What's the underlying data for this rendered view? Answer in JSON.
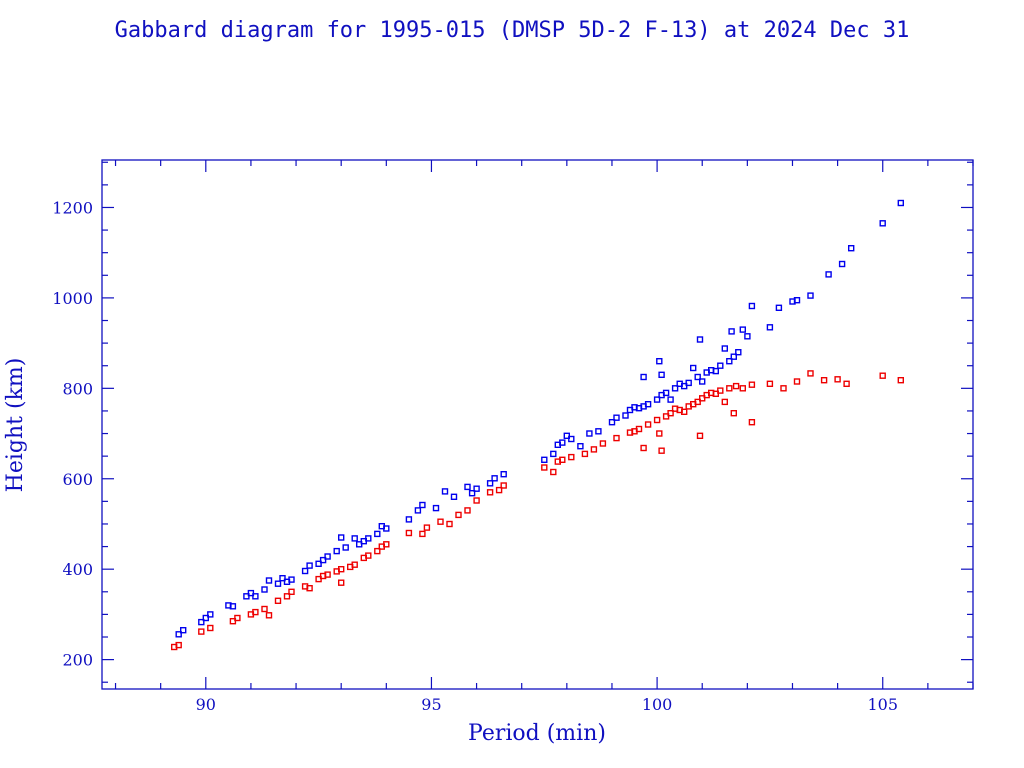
{
  "chart_data": {
    "type": "scatter",
    "title": "Gabbard diagram for 1995-015 (DMSP 5D-2 F-13) at 2024 Dec 31",
    "xlabel": "Period (min)",
    "ylabel": "Height (km)",
    "xlim": [
      87.7,
      107
    ],
    "ylim": [
      135,
      1305
    ],
    "xticks": [
      90,
      95,
      100,
      105
    ],
    "yticks": [
      200,
      400,
      600,
      800,
      1000,
      1200
    ],
    "x_minor_step": 1,
    "y_minor_step": 50,
    "grid": false,
    "legend": "none",
    "series": [
      {
        "color": "#0000ee",
        "marker": "square",
        "points": [
          [
            89.4,
            256
          ],
          [
            89.5,
            265
          ],
          [
            89.9,
            283
          ],
          [
            90.0,
            292
          ],
          [
            90.1,
            300
          ],
          [
            90.5,
            320
          ],
          [
            90.6,
            318
          ],
          [
            90.9,
            340
          ],
          [
            91.0,
            347
          ],
          [
            91.1,
            340
          ],
          [
            91.3,
            355
          ],
          [
            91.4,
            375
          ],
          [
            91.6,
            368
          ],
          [
            91.7,
            380
          ],
          [
            91.8,
            372
          ],
          [
            91.9,
            377
          ],
          [
            92.2,
            396
          ],
          [
            92.3,
            408
          ],
          [
            92.5,
            412
          ],
          [
            92.6,
            420
          ],
          [
            92.7,
            428
          ],
          [
            92.9,
            440
          ],
          [
            93.0,
            470
          ],
          [
            93.1,
            448
          ],
          [
            93.3,
            468
          ],
          [
            93.4,
            455
          ],
          [
            93.5,
            462
          ],
          [
            93.6,
            468
          ],
          [
            93.8,
            478
          ],
          [
            93.9,
            495
          ],
          [
            94.0,
            490
          ],
          [
            94.5,
            510
          ],
          [
            94.7,
            530
          ],
          [
            94.8,
            542
          ],
          [
            95.1,
            535
          ],
          [
            95.3,
            572
          ],
          [
            95.5,
            560
          ],
          [
            95.8,
            582
          ],
          [
            95.9,
            568
          ],
          [
            96.0,
            578
          ],
          [
            96.3,
            590
          ],
          [
            96.4,
            601
          ],
          [
            96.6,
            610
          ],
          [
            97.5,
            642
          ],
          [
            97.7,
            655
          ],
          [
            97.8,
            675
          ],
          [
            97.9,
            680
          ],
          [
            98.0,
            695
          ],
          [
            98.1,
            688
          ],
          [
            98.3,
            672
          ],
          [
            98.5,
            700
          ],
          [
            98.7,
            705
          ],
          [
            99.0,
            725
          ],
          [
            99.1,
            735
          ],
          [
            99.3,
            740
          ],
          [
            99.4,
            752
          ],
          [
            99.5,
            758
          ],
          [
            99.6,
            756
          ],
          [
            99.7,
            760
          ],
          [
            99.8,
            765
          ],
          [
            99.7,
            825
          ],
          [
            100.0,
            775
          ],
          [
            100.1,
            785
          ],
          [
            100.05,
            860
          ],
          [
            100.1,
            830
          ],
          [
            100.2,
            790
          ],
          [
            100.3,
            775
          ],
          [
            100.4,
            800
          ],
          [
            100.5,
            810
          ],
          [
            100.6,
            805
          ],
          [
            100.7,
            812
          ],
          [
            100.8,
            845
          ],
          [
            100.9,
            825
          ],
          [
            100.95,
            908
          ],
          [
            101.0,
            815
          ],
          [
            101.1,
            835
          ],
          [
            101.2,
            840
          ],
          [
            101.3,
            838
          ],
          [
            101.4,
            850
          ],
          [
            101.5,
            888
          ],
          [
            101.6,
            860
          ],
          [
            101.7,
            870
          ],
          [
            101.65,
            926
          ],
          [
            101.8,
            880
          ],
          [
            101.9,
            930
          ],
          [
            102.0,
            915
          ],
          [
            102.1,
            982
          ],
          [
            102.5,
            935
          ],
          [
            102.7,
            978
          ],
          [
            103.0,
            992
          ],
          [
            103.1,
            995
          ],
          [
            103.4,
            1005
          ],
          [
            103.8,
            1052
          ],
          [
            104.1,
            1075
          ],
          [
            104.3,
            1110
          ],
          [
            105.0,
            1165
          ],
          [
            105.4,
            1210
          ]
        ]
      },
      {
        "color": "#ee0000",
        "marker": "square",
        "points": [
          [
            89.3,
            228
          ],
          [
            89.4,
            232
          ],
          [
            89.9,
            262
          ],
          [
            90.1,
            270
          ],
          [
            90.6,
            285
          ],
          [
            90.7,
            292
          ],
          [
            91.0,
            300
          ],
          [
            91.1,
            305
          ],
          [
            91.3,
            312
          ],
          [
            91.4,
            298
          ],
          [
            91.6,
            330
          ],
          [
            91.8,
            340
          ],
          [
            91.9,
            350
          ],
          [
            92.2,
            362
          ],
          [
            92.3,
            358
          ],
          [
            92.5,
            378
          ],
          [
            92.6,
            385
          ],
          [
            92.7,
            388
          ],
          [
            92.9,
            395
          ],
          [
            93.0,
            400
          ],
          [
            93.0,
            370
          ],
          [
            93.2,
            405
          ],
          [
            93.3,
            410
          ],
          [
            93.5,
            425
          ],
          [
            93.6,
            430
          ],
          [
            93.8,
            440
          ],
          [
            93.9,
            450
          ],
          [
            94.0,
            455
          ],
          [
            94.5,
            480
          ],
          [
            94.8,
            478
          ],
          [
            94.9,
            492
          ],
          [
            95.2,
            505
          ],
          [
            95.4,
            500
          ],
          [
            95.6,
            520
          ],
          [
            95.8,
            530
          ],
          [
            96.0,
            552
          ],
          [
            96.3,
            570
          ],
          [
            96.5,
            575
          ],
          [
            96.6,
            585
          ],
          [
            97.5,
            625
          ],
          [
            97.7,
            615
          ],
          [
            97.8,
            638
          ],
          [
            97.9,
            642
          ],
          [
            98.1,
            648
          ],
          [
            98.4,
            655
          ],
          [
            98.6,
            665
          ],
          [
            98.8,
            678
          ],
          [
            99.1,
            690
          ],
          [
            99.4,
            702
          ],
          [
            99.5,
            705
          ],
          [
            99.6,
            710
          ],
          [
            99.7,
            668
          ],
          [
            99.8,
            720
          ],
          [
            100.0,
            730
          ],
          [
            100.05,
            700
          ],
          [
            100.1,
            662
          ],
          [
            100.2,
            738
          ],
          [
            100.3,
            745
          ],
          [
            100.4,
            755
          ],
          [
            100.5,
            752
          ],
          [
            100.6,
            748
          ],
          [
            100.7,
            760
          ],
          [
            100.8,
            765
          ],
          [
            100.9,
            770
          ],
          [
            100.95,
            695
          ],
          [
            101.0,
            778
          ],
          [
            101.1,
            785
          ],
          [
            101.2,
            790
          ],
          [
            101.3,
            788
          ],
          [
            101.4,
            795
          ],
          [
            101.5,
            770
          ],
          [
            101.6,
            800
          ],
          [
            101.7,
            745
          ],
          [
            101.75,
            805
          ],
          [
            101.9,
            800
          ],
          [
            102.1,
            725
          ],
          [
            102.1,
            808
          ],
          [
            102.5,
            810
          ],
          [
            102.8,
            800
          ],
          [
            103.1,
            815
          ],
          [
            103.4,
            833
          ],
          [
            103.7,
            818
          ],
          [
            104.0,
            820
          ],
          [
            104.2,
            810
          ],
          [
            105.0,
            828
          ],
          [
            105.4,
            818
          ]
        ]
      }
    ]
  }
}
